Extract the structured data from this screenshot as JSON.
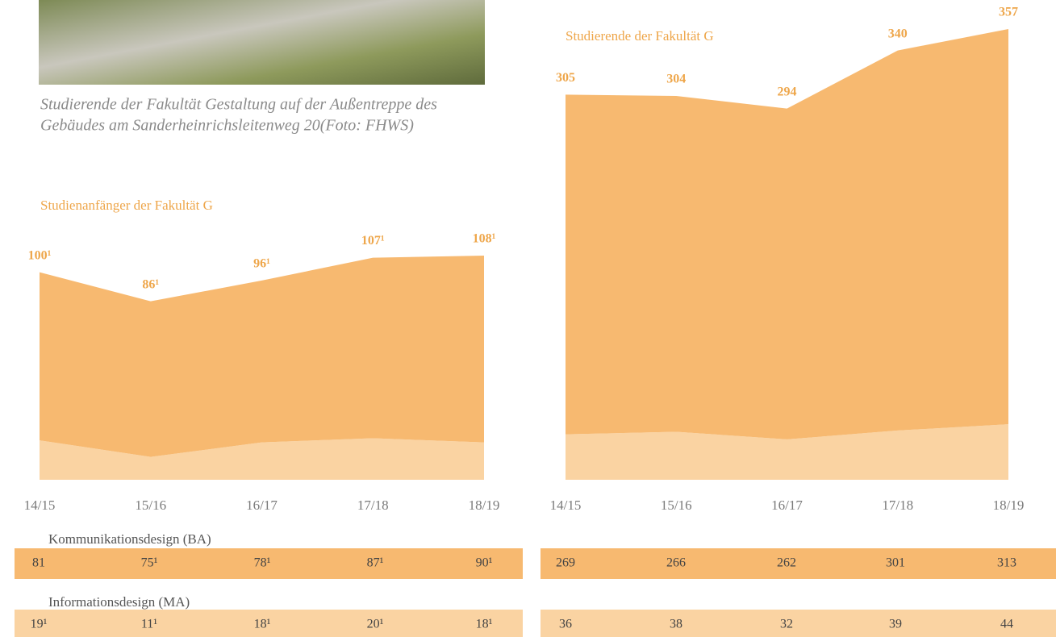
{
  "caption": [
    "Studierende der Fakultät Gestaltung auf der Außentreppe des",
    "Gebäudes am Sanderheinrichsleitenweg 20(Foto: FHWS)"
  ],
  "chart_data": [
    {
      "type": "area",
      "stacked": true,
      "title": "Studienanfänger der Fakultät G",
      "categories": [
        "14/15",
        "15/16",
        "16/17",
        "17/18",
        "18/19"
      ],
      "ylim": [
        0,
        108
      ],
      "series": [
        {
          "name": "Kommunikationsdesign (BA)",
          "color": "#f7b970",
          "values": [
            81,
            75,
            78,
            87,
            90
          ],
          "value_labels": [
            "81",
            "75¹",
            "78¹",
            "87¹",
            "90¹"
          ]
        },
        {
          "name": "Informationsdesign (MA)",
          "color": "#fad3a2",
          "values": [
            19,
            11,
            18,
            20,
            18
          ],
          "value_labels": [
            "19¹",
            "11¹",
            "18¹",
            "20¹",
            "18¹"
          ]
        }
      ],
      "totals": [
        100,
        86,
        96,
        107,
        108
      ],
      "total_labels": [
        "100¹",
        "86¹",
        "96¹",
        "107¹",
        "108¹"
      ]
    },
    {
      "type": "area",
      "stacked": true,
      "title": "Studierende der Fakultät G",
      "categories": [
        "14/15",
        "15/16",
        "16/17",
        "17/18",
        "18/19"
      ],
      "ylim": [
        0,
        357
      ],
      "series": [
        {
          "color": "#f7b970",
          "values": [
            269,
            266,
            262,
            301,
            313
          ]
        },
        {
          "color": "#fad3a2",
          "values": [
            36,
            38,
            32,
            39,
            44
          ]
        }
      ],
      "totals": [
        305,
        304,
        294,
        340,
        357
      ]
    }
  ]
}
